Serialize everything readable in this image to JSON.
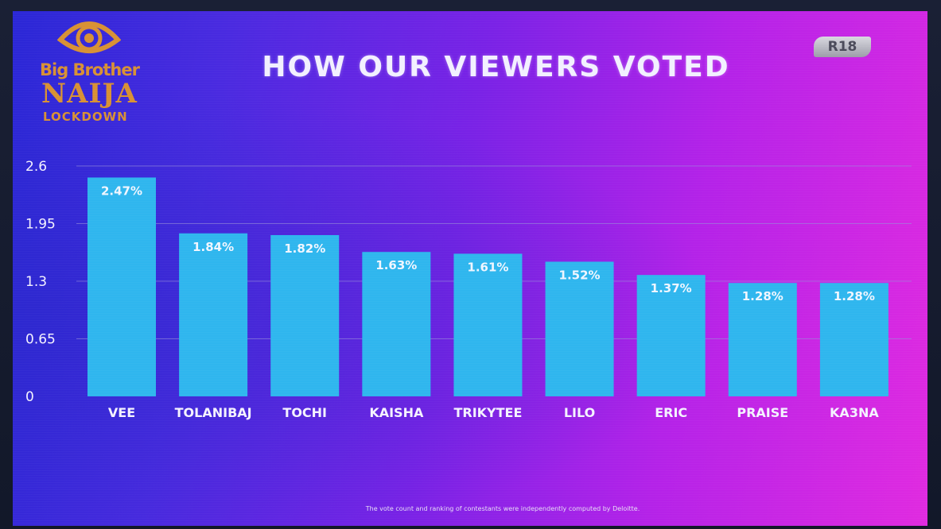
{
  "logo": {
    "line1": "Big Brother",
    "line2": "NAIJA",
    "line3": "LOCKDOWN"
  },
  "title": "HOW OUR VIEWERS VOTED",
  "rating_badge": "R18",
  "footnote": "The vote count and ranking of contestants were independently computed by Deloitte.",
  "colors": {
    "bar": "#2fb6ee",
    "gridline": "#9a8fd8",
    "logo": "#d89134"
  },
  "chart_data": {
    "type": "bar",
    "title": "HOW OUR VIEWERS VOTED",
    "xlabel": "",
    "ylabel": "",
    "ylim": [
      0,
      2.6
    ],
    "yticks": [
      0,
      0.65,
      1.3,
      1.95,
      2.6
    ],
    "ytick_labels": [
      "0",
      "0.65",
      "1.3",
      "1.95",
      "2.6"
    ],
    "grid": true,
    "categories": [
      "VEE",
      "TOLANIBAJ",
      "TOCHI",
      "KAISHA",
      "TRIKYTEE",
      "LILO",
      "ERIC",
      "PRAISE",
      "KA3NA"
    ],
    "values": [
      2.47,
      1.84,
      1.82,
      1.63,
      1.61,
      1.52,
      1.37,
      1.28,
      1.28
    ],
    "data_labels": [
      "2.47%",
      "1.84%",
      "1.82%",
      "1.63%",
      "1.61%",
      "1.52%",
      "1.37%",
      "1.28%",
      "1.28%"
    ]
  }
}
